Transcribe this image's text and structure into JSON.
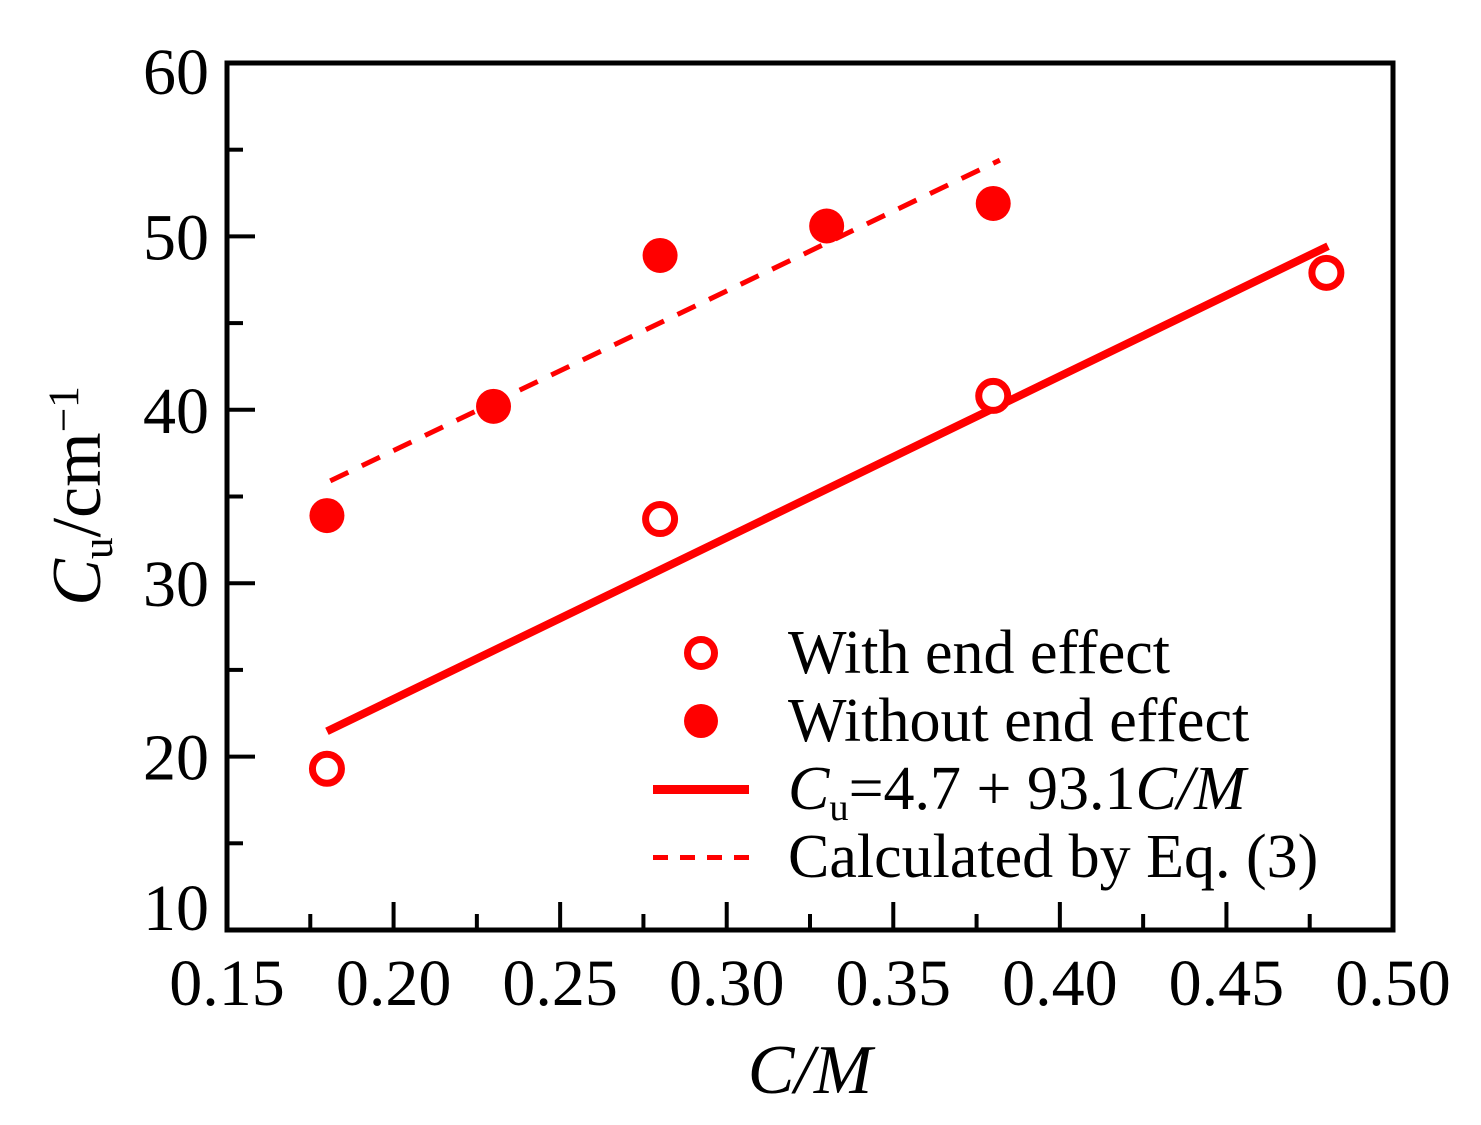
{
  "figure": {
    "background": "#ffffff",
    "accent_red": "#ff0000",
    "axis_color": "#000000"
  },
  "chart_data": {
    "type": "scatter",
    "title": "",
    "xlabel": "C/M",
    "ylabel": "Cu/cm−1",
    "xlabel_parts": [
      {
        "t": "C",
        "s": "i"
      },
      {
        "t": "/",
        "s": "i"
      },
      {
        "t": "M",
        "s": "i"
      }
    ],
    "ylabel_parts": [
      {
        "t": "C",
        "s": "i"
      },
      {
        "t": "u",
        "s": "sub"
      },
      {
        "t": "/cm",
        "s": ""
      },
      {
        "t": "−1",
        "s": "sup"
      }
    ],
    "x_axis": {
      "range": [
        0.15,
        0.5
      ],
      "major_ticks": [
        0.15,
        0.2,
        0.25,
        0.3,
        0.35,
        0.4,
        0.45,
        0.5
      ],
      "tick_labels": [
        "0.15",
        "0.20",
        "0.25",
        "0.30",
        "0.35",
        "0.40",
        "0.45",
        "0.50"
      ],
      "minor_ticks": [
        0.175,
        0.225,
        0.275,
        0.325,
        0.375,
        0.425,
        0.475
      ]
    },
    "y_axis": {
      "range": [
        10,
        60
      ],
      "major_ticks": [
        10,
        20,
        30,
        40,
        50,
        60
      ],
      "tick_labels": [
        "10",
        "20",
        "30",
        "40",
        "50",
        "60"
      ],
      "minor_ticks": [
        15,
        25,
        35,
        45,
        55
      ],
      "label_shifts": {
        "10": -23,
        "60": 8
      }
    },
    "series": [
      {
        "name": "With end effect",
        "marker": "circle-open",
        "points": [
          [
            0.18,
            19.3
          ],
          [
            0.28,
            33.7
          ],
          [
            0.38,
            40.8
          ],
          [
            0.48,
            47.9
          ]
        ]
      },
      {
        "name": "Without end effect",
        "marker": "circle-filled",
        "points": [
          [
            0.18,
            33.9
          ],
          [
            0.23,
            40.2
          ],
          [
            0.28,
            48.9
          ],
          [
            0.33,
            50.6
          ],
          [
            0.38,
            51.9
          ]
        ]
      }
    ],
    "lines": [
      {
        "name": "Cu = 4.7 + 93.1 C/M",
        "style": "solid",
        "x_range": [
          0.18,
          0.4805
        ],
        "equation": {
          "intercept": 4.7,
          "slope": 93.1
        }
      },
      {
        "name": "Calculated by Eq. (3)",
        "style": "dashed",
        "start": [
          0.181,
          35.9
        ],
        "end": [
          0.382,
          54.4
        ]
      }
    ],
    "legend_position": "inside-lower-right",
    "grid": false
  },
  "legend": {
    "items": [
      {
        "marker": "circle-open",
        "parts": [
          {
            "t": "With end effect",
            "s": ""
          }
        ]
      },
      {
        "marker": "circle-filled",
        "parts": [
          {
            "t": "Without end effect",
            "s": ""
          }
        ]
      },
      {
        "marker": "line-solid",
        "parts": [
          {
            "t": "C",
            "s": "i"
          },
          {
            "t": "u",
            "s": "sub"
          },
          {
            "t": "=4.7 + 93.1",
            "s": ""
          },
          {
            "t": "C",
            "s": "i"
          },
          {
            "t": "/",
            "s": "i"
          },
          {
            "t": "M",
            "s": "i"
          }
        ]
      },
      {
        "marker": "line-dashed",
        "parts": [
          {
            "t": "Calculated by Eq. (3)",
            "s": ""
          }
        ]
      }
    ]
  }
}
